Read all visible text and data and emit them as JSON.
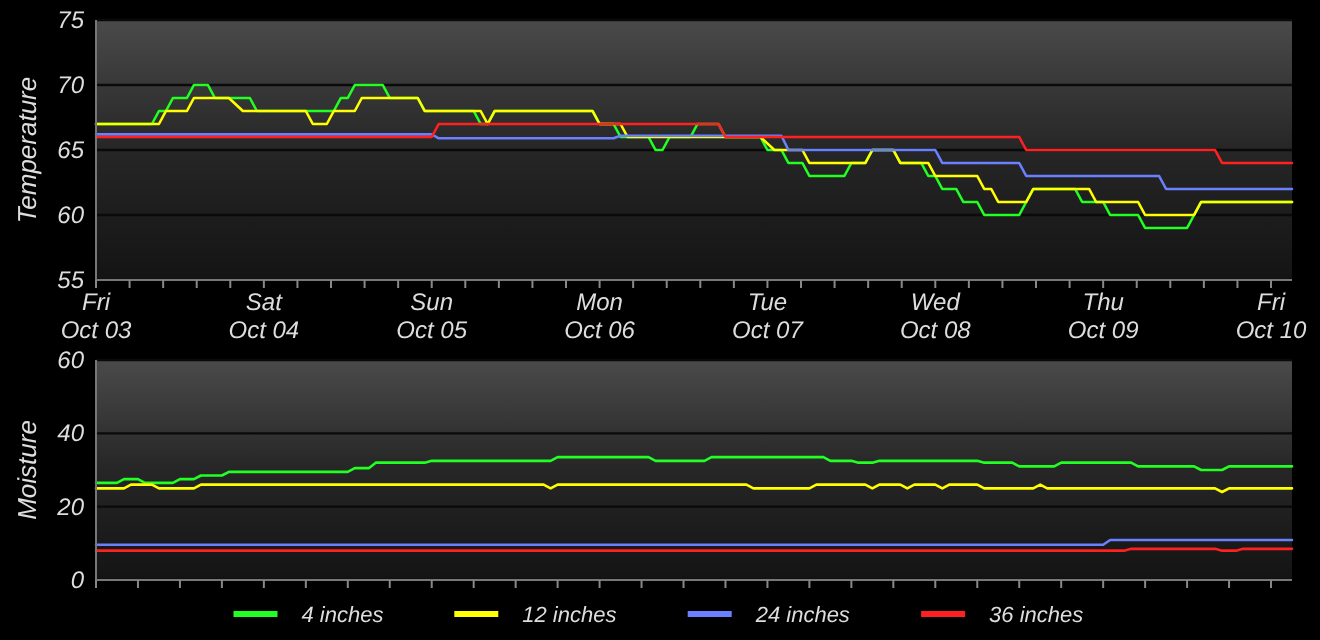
{
  "chart_data": [
    {
      "type": "line",
      "ylabel": "Temperature",
      "xlim": [
        "--10-03T00:00",
        "--10-10T03:00"
      ],
      "ylim": [
        55,
        75
      ],
      "yticks": [
        55,
        60,
        65,
        70,
        75
      ],
      "grid": "y",
      "line_style": "solid",
      "xticks": [
        {
          "value": "--10-03T00:00",
          "label": "Fri\nOct 03"
        },
        {
          "value": "--10-03T04:48",
          "label": null
        },
        {
          "value": "--10-03T09:36",
          "label": null
        },
        {
          "value": "--10-03T14:24",
          "label": null
        },
        {
          "value": "--10-03T19:12",
          "label": null
        },
        {
          "value": "--10-04T00:00",
          "label": "Sat\nOct 04"
        },
        {
          "value": "--10-04T04:48",
          "label": null
        },
        {
          "value": "--10-04T09:36",
          "label": null
        },
        {
          "value": "--10-04T14:24",
          "label": null
        },
        {
          "value": "--10-04T19:12",
          "label": null
        },
        {
          "value": "--10-05T00:00",
          "label": "Sun\nOct 05"
        },
        {
          "value": "--10-05T04:48",
          "label": null
        },
        {
          "value": "--10-05T09:36",
          "label": null
        },
        {
          "value": "--10-05T14:24",
          "label": null
        },
        {
          "value": "--10-05T19:12",
          "label": null
        },
        {
          "value": "--10-06T00:00",
          "label": "Mon\nOct 06"
        },
        {
          "value": "--10-06T04:48",
          "label": null
        },
        {
          "value": "--10-06T09:36",
          "label": null
        },
        {
          "value": "--10-06T14:24",
          "label": null
        },
        {
          "value": "--10-06T19:12",
          "label": null
        },
        {
          "value": "--10-07T00:00",
          "label": "Tue\nOct 07"
        },
        {
          "value": "--10-07T04:48",
          "label": null
        },
        {
          "value": "--10-07T09:36",
          "label": null
        },
        {
          "value": "--10-07T14:24",
          "label": null
        },
        {
          "value": "--10-07T19:12",
          "label": null
        },
        {
          "value": "--10-08T00:00",
          "label": "Wed\nOct 08"
        },
        {
          "value": "--10-08T04:48",
          "label": null
        },
        {
          "value": "--10-08T09:36",
          "label": null
        },
        {
          "value": "--10-08T14:24",
          "label": null
        },
        {
          "value": "--10-08T19:12",
          "label": null
        },
        {
          "value": "--10-09T00:00",
          "label": "Thu\nOct 09"
        },
        {
          "value": "--10-09T04:48",
          "label": null
        },
        {
          "value": "--10-09T09:36",
          "label": null
        },
        {
          "value": "--10-09T14:24",
          "label": null
        },
        {
          "value": "--10-09T19:12",
          "label": null
        },
        {
          "value": "--10-10T00:00",
          "label": "Fri\nOct 10"
        }
      ],
      "series": [
        {
          "color": "#22ff22",
          "x": [
            "--10-03T00:00",
            "--10-03T08:00",
            "--10-03T09:00",
            "--10-03T10:00",
            "--10-03T11:00",
            "--10-03T13:00",
            "--10-03T14:00",
            "--10-03T16:00",
            "--10-03T17:00",
            "--10-03T22:00",
            "--10-03T23:00",
            "--10-04T10:00",
            "--10-04T11:00",
            "--10-04T12:00",
            "--10-04T13:00",
            "--10-04T17:00",
            "--10-04T18:00",
            "--10-04T22:00",
            "--10-04T23:00",
            "--10-05T06:00",
            "--10-05T07:00",
            "--10-05T08:00",
            "--10-05T09:00",
            "--10-05T23:00",
            "--10-06T00:00",
            "--10-06T02:00",
            "--10-06T03:00",
            "--10-06T07:00",
            "--10-06T08:00",
            "--10-06T09:00",
            "--10-06T10:00",
            "--10-06T13:00",
            "--10-06T14:00",
            "--10-06T17:00",
            "--10-06T18:00",
            "--10-06T23:00",
            "--10-07T00:00",
            "--10-07T02:00",
            "--10-07T03:00",
            "--10-07T05:00",
            "--10-07T06:00",
            "--10-07T11:00",
            "--10-07T12:00",
            "--10-07T14:00",
            "--10-07T15:00",
            "--10-07T18:00",
            "--10-07T19:00",
            "--10-07T22:00",
            "--10-07T23:00",
            "--10-08T00:00",
            "--10-08T01:00",
            "--10-08T03:00",
            "--10-08T04:00",
            "--10-08T06:00",
            "--10-08T07:00",
            "--10-08T12:00",
            "--10-08T13:00",
            "--10-08T14:00",
            "--10-08T20:00",
            "--10-08T21:00",
            "--10-09T00:00",
            "--10-09T01:00",
            "--10-09T05:00",
            "--10-09T06:00",
            "--10-09T12:00",
            "--10-09T13:00",
            "--10-09T14:00",
            "--10-10T03:00"
          ],
          "values": [
            67,
            67,
            68,
            68,
            69,
            69,
            70,
            70,
            69,
            69,
            68,
            68,
            69,
            69,
            70,
            70,
            69,
            69,
            68,
            68,
            67,
            67,
            68,
            68,
            67,
            67,
            66,
            66,
            65,
            65,
            66,
            66,
            67,
            67,
            66,
            66,
            65,
            65,
            64,
            64,
            63,
            63,
            64,
            64,
            65,
            65,
            64,
            64,
            63,
            63,
            62,
            62,
            61,
            61,
            60,
            60,
            61,
            62,
            62,
            61,
            61,
            60,
            60,
            59,
            59,
            60,
            61,
            61
          ]
        },
        {
          "color": "#ffff00",
          "x": [
            "--10-03T00:00",
            "--10-03T09:00",
            "--10-03T10:00",
            "--10-03T13:00",
            "--10-03T14:00",
            "--10-03T19:00",
            "--10-03T21:00",
            "--10-04T06:00",
            "--10-04T07:00",
            "--10-04T09:00",
            "--10-04T10:00",
            "--10-04T13:00",
            "--10-04T14:00",
            "--10-04T22:00",
            "--10-04T23:00",
            "--10-05T07:00",
            "--10-05T08:00",
            "--10-05T09:00",
            "--10-05T23:00",
            "--10-06T00:00",
            "--10-06T03:00",
            "--10-06T04:00",
            "--10-06T23:00",
            "--10-07T01:00",
            "--10-07T05:00",
            "--10-07T06:00",
            "--10-07T14:00",
            "--10-07T15:00",
            "--10-07T18:00",
            "--10-07T19:00",
            "--10-07T23:00",
            "--10-08T00:00",
            "--10-08T06:00",
            "--10-08T07:00",
            "--10-08T08:00",
            "--10-08T09:00",
            "--10-08T13:00",
            "--10-08T14:00",
            "--10-08T22:00",
            "--10-08T23:00",
            "--10-09T05:00",
            "--10-09T06:00",
            "--10-09T13:00",
            "--10-09T14:00",
            "--10-10T03:00"
          ],
          "values": [
            67,
            67,
            68,
            68,
            69,
            69,
            68,
            68,
            67,
            67,
            68,
            68,
            69,
            69,
            68,
            68,
            67,
            68,
            68,
            67,
            67,
            66,
            66,
            65,
            65,
            64,
            64,
            65,
            65,
            64,
            64,
            63,
            63,
            62,
            62,
            61,
            61,
            62,
            62,
            61,
            61,
            60,
            60,
            61,
            61
          ]
        },
        {
          "color": "#6a80ff",
          "x": [
            "--10-03T00:00",
            "--10-05T00:00",
            "--10-05T01:00",
            "--10-06T02:00",
            "--10-06T03:00",
            "--10-07T02:00",
            "--10-07T03:00",
            "--10-08T00:00",
            "--10-08T01:00",
            "--10-08T12:00",
            "--10-08T13:00",
            "--10-09T08:00",
            "--10-09T09:00",
            "--10-10T03:00"
          ],
          "values": [
            66.2,
            66.2,
            65.9,
            65.9,
            66.1,
            66.1,
            65,
            65,
            64,
            64,
            63,
            63,
            62,
            62
          ]
        },
        {
          "color": "#ff2020",
          "x": [
            "--10-03T00:00",
            "--10-05T00:00",
            "--10-05T01:00",
            "--10-06T17:00",
            "--10-06T18:00",
            "--10-08T12:00",
            "--10-08T13:00",
            "--10-09T16:00",
            "--10-09T17:00",
            "--10-10T03:00"
          ],
          "values": [
            66,
            66,
            67,
            67,
            66,
            66,
            65,
            65,
            64,
            64
          ]
        }
      ]
    },
    {
      "type": "line",
      "ylabel": "Moisture",
      "xlim": [
        "--10-03T00:00",
        "--10-10T03:00"
      ],
      "ylim": [
        0,
        60
      ],
      "yticks": [
        0,
        20,
        40,
        60
      ],
      "grid": "y",
      "line_style": "solid",
      "tick_labels": "y",
      "legend": "bottom",
      "xticks": [
        {
          "value": "--10-03T00:00",
          "label": null
        },
        {
          "value": "--10-03T06:00",
          "label": null
        },
        {
          "value": "--10-03T12:00",
          "label": null
        },
        {
          "value": "--10-03T18:00",
          "label": null
        },
        {
          "value": "--10-04T00:00",
          "label": null
        },
        {
          "value": "--10-04T06:00",
          "label": null
        },
        {
          "value": "--10-04T12:00",
          "label": null
        },
        {
          "value": "--10-04T18:00",
          "label": null
        },
        {
          "value": "--10-05T00:00",
          "label": null
        },
        {
          "value": "--10-05T06:00",
          "label": null
        },
        {
          "value": "--10-05T12:00",
          "label": null
        },
        {
          "value": "--10-05T18:00",
          "label": null
        },
        {
          "value": "--10-06T00:00",
          "label": null
        },
        {
          "value": "--10-06T06:00",
          "label": null
        },
        {
          "value": "--10-06T12:00",
          "label": null
        },
        {
          "value": "--10-06T18:00",
          "label": null
        },
        {
          "value": "--10-07T00:00",
          "label": null
        },
        {
          "value": "--10-07T06:00",
          "label": null
        },
        {
          "value": "--10-07T12:00",
          "label": null
        },
        {
          "value": "--10-07T18:00",
          "label": null
        },
        {
          "value": "--10-08T00:00",
          "label": null
        },
        {
          "value": "--10-08T06:00",
          "label": null
        },
        {
          "value": "--10-08T12:00",
          "label": null
        },
        {
          "value": "--10-08T18:00",
          "label": null
        },
        {
          "value": "--10-09T00:00",
          "label": null
        },
        {
          "value": "--10-09T06:00",
          "label": null
        },
        {
          "value": "--10-09T12:00",
          "label": null
        },
        {
          "value": "--10-09T18:00",
          "label": null
        },
        {
          "value": "--10-10T00:00",
          "label": null
        }
      ],
      "series": [
        {
          "name": "4 inches",
          "color": "#22ff22",
          "x": [
            "--10-03T00:00",
            "--10-03T03:00",
            "--10-03T04:00",
            "--10-03T06:00",
            "--10-03T07:00",
            "--10-03T11:00",
            "--10-03T12:00",
            "--10-03T14:00",
            "--10-03T15:00",
            "--10-03T18:00",
            "--10-03T19:00",
            "--10-04T12:00",
            "--10-04T13:00",
            "--10-04T15:00",
            "--10-04T16:00",
            "--10-04T23:00",
            "--10-05T00:00",
            "--10-05T17:00",
            "--10-05T18:00",
            "--10-06T07:00",
            "--10-06T08:00",
            "--10-06T15:00",
            "--10-06T16:00",
            "--10-07T08:00",
            "--10-07T09:00",
            "--10-07T12:00",
            "--10-07T13:00",
            "--10-07T15:00",
            "--10-07T16:00",
            "--10-08T06:00",
            "--10-08T07:00",
            "--10-08T11:00",
            "--10-08T12:00",
            "--10-08T17:00",
            "--10-08T18:00",
            "--10-09T04:00",
            "--10-09T05:00",
            "--10-09T13:00",
            "--10-09T14:00",
            "--10-09T17:00",
            "--10-09T18:00",
            "--10-10T03:00"
          ],
          "values": [
            26.5,
            26.5,
            27.5,
            27.5,
            26.5,
            26.5,
            27.5,
            27.5,
            28.5,
            28.5,
            29.5,
            29.5,
            30.5,
            30.5,
            32,
            32,
            32.5,
            32.5,
            33.5,
            33.5,
            32.5,
            32.5,
            33.5,
            33.5,
            32.5,
            32.5,
            32,
            32,
            32.5,
            32.5,
            32,
            32,
            31,
            31,
            32,
            32,
            31,
            31,
            30,
            30,
            31,
            31
          ]
        },
        {
          "name": "12 inches",
          "color": "#ffff00",
          "x": [
            "--10-03T00:00",
            "--10-03T04:00",
            "--10-03T05:00",
            "--10-03T08:00",
            "--10-03T09:00",
            "--10-03T14:00",
            "--10-03T15:00",
            "--10-05T16:00",
            "--10-05T17:00",
            "--10-05T18:00",
            "--10-06T21:00",
            "--10-06T22:00",
            "--10-07T06:00",
            "--10-07T07:00",
            "--10-07T14:00",
            "--10-07T15:00",
            "--10-07T16:00",
            "--10-07T19:00",
            "--10-07T20:00",
            "--10-07T21:00",
            "--10-08T00:00",
            "--10-08T01:00",
            "--10-08T02:00",
            "--10-08T06:00",
            "--10-08T07:00",
            "--10-08T14:00",
            "--10-08T15:00",
            "--10-08T16:00",
            "--10-09T16:00",
            "--10-09T17:00",
            "--10-09T18:00",
            "--10-10T03:00"
          ],
          "values": [
            25,
            25,
            26,
            26,
            25,
            25,
            26,
            26,
            25,
            26,
            26,
            25,
            25,
            26,
            26,
            25,
            26,
            26,
            25,
            26,
            26,
            25,
            26,
            26,
            25,
            25,
            26,
            25,
            25,
            24,
            25,
            25
          ]
        },
        {
          "name": "24 inches",
          "color": "#6a80ff",
          "x": [
            "--10-03T00:00",
            "--10-09T00:00",
            "--10-09T01:00",
            "--10-10T03:00"
          ],
          "values": [
            9.6,
            9.6,
            10.9,
            10.9
          ]
        },
        {
          "name": "36 inches",
          "color": "#ff2020",
          "x": [
            "--10-03T00:00",
            "--10-09T03:00",
            "--10-09T04:00",
            "--10-09T16:00",
            "--10-09T17:00",
            "--10-09T19:00",
            "--10-09T20:00",
            "--10-10T03:00"
          ],
          "values": [
            8,
            8,
            8.5,
            8.5,
            8,
            8,
            8.5,
            8.5
          ]
        }
      ]
    }
  ]
}
